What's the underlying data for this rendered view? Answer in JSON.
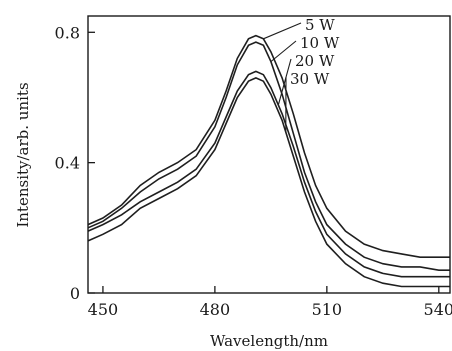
{
  "chart_data": {
    "type": "line",
    "xlabel": "Wavelength/nm",
    "ylabel": "Intensity/arb. units",
    "xlim": [
      446,
      543
    ],
    "ylim": [
      0,
      0.85
    ],
    "x_ticks": [
      "450",
      "480",
      "510",
      "540"
    ],
    "x_tick_values": [
      450,
      480,
      510,
      540
    ],
    "y_ticks": [
      "0",
      "0.4",
      "0.8"
    ],
    "y_tick_values": [
      0,
      0.4,
      0.8
    ],
    "grid": false,
    "legend_placement": "labels with leader lines at the peak",
    "x": [
      446,
      450,
      455,
      460,
      465,
      470,
      475,
      480,
      483,
      486,
      489,
      491,
      493,
      495,
      498,
      501,
      504,
      507,
      510,
      515,
      520,
      525,
      530,
      535,
      540,
      543
    ],
    "series": [
      {
        "name": "5 W",
        "values": [
          0.21,
          0.23,
          0.27,
          0.33,
          0.37,
          0.4,
          0.44,
          0.53,
          0.62,
          0.72,
          0.78,
          0.79,
          0.78,
          0.74,
          0.66,
          0.55,
          0.43,
          0.33,
          0.26,
          0.19,
          0.15,
          0.13,
          0.12,
          0.11,
          0.11,
          0.11
        ]
      },
      {
        "name": "10 W",
        "values": [
          0.2,
          0.22,
          0.26,
          0.31,
          0.35,
          0.38,
          0.42,
          0.51,
          0.6,
          0.7,
          0.76,
          0.77,
          0.76,
          0.71,
          0.61,
          0.49,
          0.37,
          0.28,
          0.21,
          0.15,
          0.11,
          0.09,
          0.08,
          0.08,
          0.07,
          0.07
        ]
      },
      {
        "name": "20 W",
        "values": [
          0.19,
          0.21,
          0.24,
          0.28,
          0.31,
          0.34,
          0.38,
          0.46,
          0.54,
          0.62,
          0.67,
          0.68,
          0.67,
          0.63,
          0.55,
          0.45,
          0.34,
          0.25,
          0.18,
          0.12,
          0.08,
          0.06,
          0.05,
          0.05,
          0.05,
          0.05
        ]
      },
      {
        "name": "30 W",
        "values": [
          0.16,
          0.18,
          0.21,
          0.26,
          0.29,
          0.32,
          0.36,
          0.44,
          0.52,
          0.6,
          0.65,
          0.66,
          0.65,
          0.61,
          0.53,
          0.42,
          0.31,
          0.22,
          0.15,
          0.09,
          0.05,
          0.03,
          0.02,
          0.02,
          0.02,
          0.02
        ]
      }
    ]
  }
}
